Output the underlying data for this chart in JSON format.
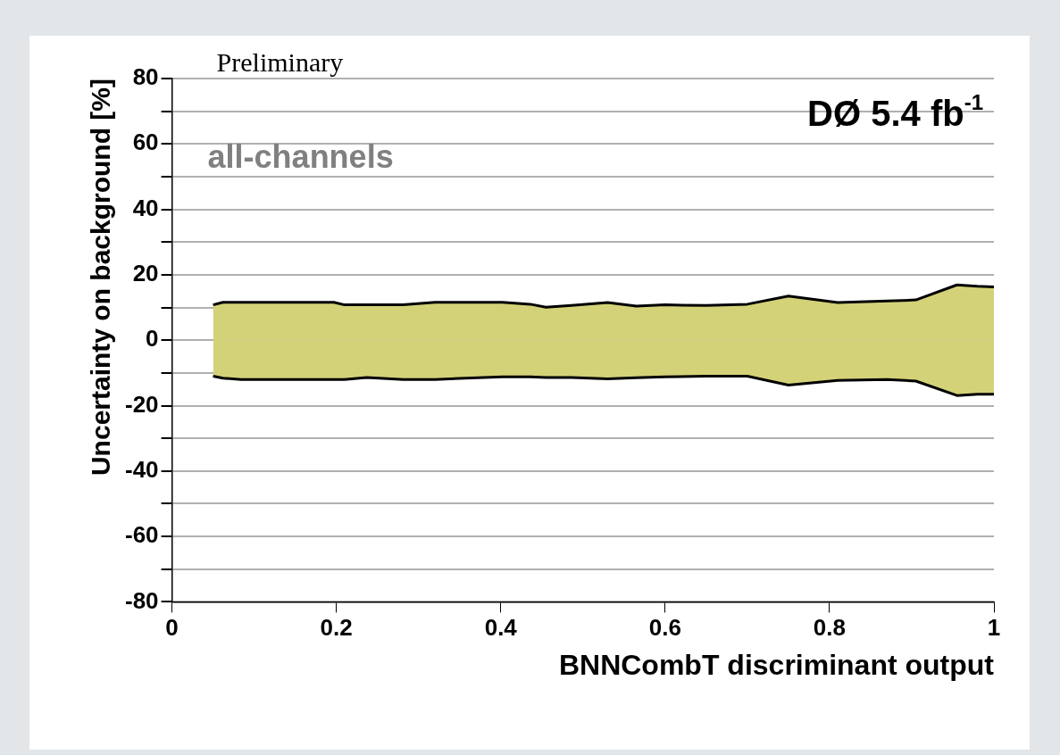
{
  "chart_data": {
    "type": "area",
    "xlabel": "BNNCombT discriminant output",
    "ylabel": "Uncertainty on background [%]",
    "annotations": [
      "Preliminary",
      "all-channels",
      "DØ 5.4 fb$^{-1}$"
    ],
    "x": [
      0.05,
      0.062,
      0.084,
      0.197,
      0.21,
      0.237,
      0.281,
      0.32,
      0.402,
      0.436,
      0.455,
      0.486,
      0.53,
      0.565,
      0.6,
      0.65,
      0.7,
      0.75,
      0.81,
      0.87,
      0.905,
      0.955,
      0.98,
      1.0
    ],
    "series": [
      {
        "color": "#d4d278",
        "values": [
          10.8,
          11.6,
          11.6,
          11.6,
          10.8,
          10.8,
          10.8,
          11.6,
          11.6,
          11,
          10.1,
          10.6,
          11.5,
          10.4,
          10.8,
          10.6,
          11,
          13.5,
          11.5,
          12,
          12.3,
          16.9,
          16.5,
          16.3
        ]
      },
      {
        "color": "#d4d278",
        "values": [
          -11,
          -11.6,
          -12,
          -12,
          -12,
          -11.4,
          -12,
          -12,
          -11.2,
          -11.2,
          -11.4,
          -11.4,
          -11.8,
          -11.5,
          -11.2,
          -11,
          -11,
          -13.7,
          -12.3,
          -12,
          -12.5,
          -16.9,
          -16.5,
          -16.5
        ]
      }
    ],
    "xlim": [
      0,
      1
    ],
    "xticks": [
      0,
      0.2,
      0.4,
      0.6,
      0.8,
      1
    ],
    "ylim": [
      -80,
      80
    ],
    "yticks": [
      -80,
      {
        "value": -70,
        "label": null
      },
      -60,
      {
        "value": -50,
        "label": null
      },
      -40,
      {
        "value": -30,
        "label": null
      },
      -20,
      {
        "value": -10,
        "label": null
      },
      0,
      {
        "value": 10,
        "label": null
      },
      20,
      {
        "value": 30,
        "label": null
      },
      40,
      {
        "value": 50,
        "label": null
      },
      60,
      {
        "value": 70,
        "label": null
      },
      80
    ],
    "grid": "y",
    "legend": false
  }
}
